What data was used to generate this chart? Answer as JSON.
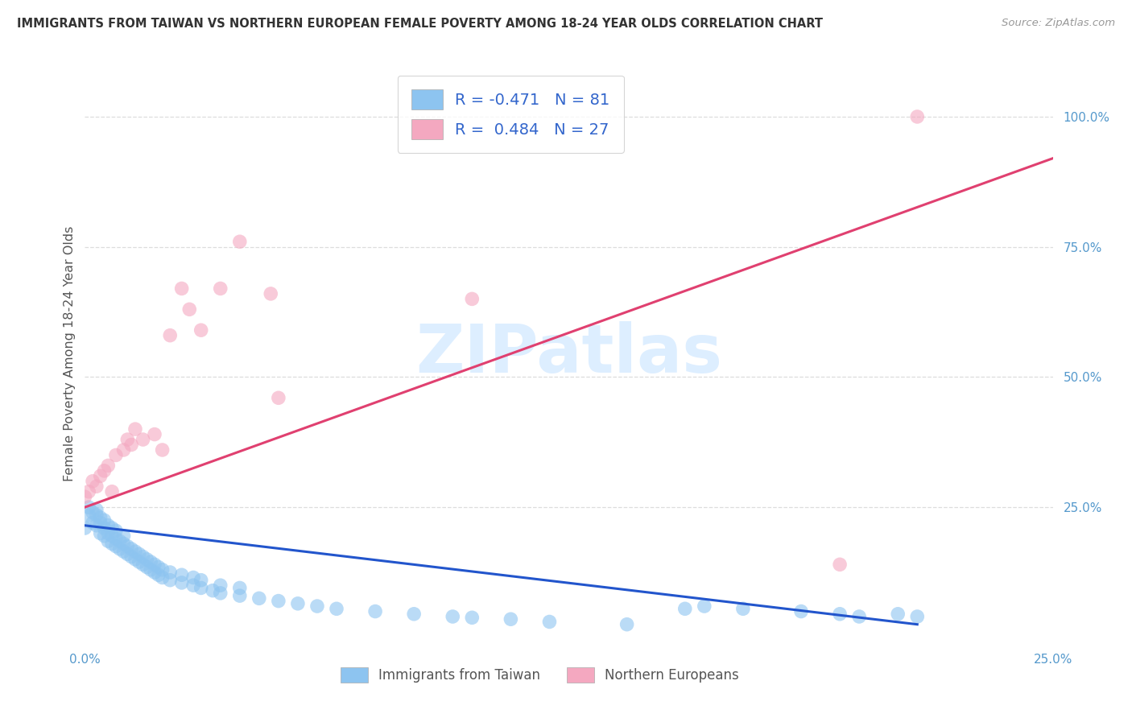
{
  "title": "IMMIGRANTS FROM TAIWAN VS NORTHERN EUROPEAN FEMALE POVERTY AMONG 18-24 YEAR OLDS CORRELATION CHART",
  "source": "Source: ZipAtlas.com",
  "ylabel": "Female Poverty Among 18-24 Year Olds",
  "xlim": [
    0.0,
    0.25
  ],
  "ylim": [
    -0.01,
    1.1
  ],
  "xtick_positions": [
    0.0,
    0.05,
    0.1,
    0.15,
    0.2,
    0.25
  ],
  "xtick_labels": [
    "0.0%",
    "",
    "",
    "",
    "",
    "25.0%"
  ],
  "ytick_right_positions": [
    0.25,
    0.5,
    0.75,
    1.0
  ],
  "ytick_right_labels": [
    "25.0%",
    "50.0%",
    "75.0%",
    "100.0%"
  ],
  "blue_color": "#8DC4F0",
  "pink_color": "#F4A8C0",
  "line_blue_color": "#2255CC",
  "line_pink_color": "#E04070",
  "tick_label_color": "#5599CC",
  "title_color": "#333333",
  "source_color": "#999999",
  "grid_color": "#DDDDDD",
  "watermark_color": "#DDEEFF",
  "ylabel_color": "#555555",
  "legend_text_color": "#3366CC",
  "legend_label_color": "#555555",
  "legend_r1": "R = -0.471",
  "legend_n1": "N = 81",
  "legend_r2": "R =  0.484",
  "legend_n2": "N = 27",
  "legend_label1": "Immigrants from Taiwan",
  "legend_label2": "Northern Europeans",
  "blue_trend_x0": 0.0,
  "blue_trend_y0": 0.215,
  "blue_trend_x1": 0.215,
  "blue_trend_y1": 0.025,
  "pink_trend_x0": 0.0,
  "pink_trend_y0": 0.25,
  "pink_trend_x1": 0.25,
  "pink_trend_y1": 0.92,
  "tw_x": [
    0.0,
    0.001,
    0.001,
    0.002,
    0.002,
    0.003,
    0.003,
    0.003,
    0.004,
    0.004,
    0.004,
    0.005,
    0.005,
    0.005,
    0.006,
    0.006,
    0.006,
    0.007,
    0.007,
    0.007,
    0.008,
    0.008,
    0.008,
    0.009,
    0.009,
    0.01,
    0.01,
    0.01,
    0.011,
    0.011,
    0.012,
    0.012,
    0.013,
    0.013,
    0.014,
    0.014,
    0.015,
    0.015,
    0.016,
    0.016,
    0.017,
    0.017,
    0.018,
    0.018,
    0.019,
    0.019,
    0.02,
    0.02,
    0.022,
    0.022,
    0.025,
    0.025,
    0.028,
    0.028,
    0.03,
    0.03,
    0.033,
    0.035,
    0.035,
    0.04,
    0.04,
    0.045,
    0.05,
    0.055,
    0.06,
    0.065,
    0.075,
    0.085,
    0.095,
    0.1,
    0.11,
    0.12,
    0.14,
    0.155,
    0.16,
    0.17,
    0.185,
    0.195,
    0.2,
    0.21,
    0.215
  ],
  "tw_y": [
    0.21,
    0.235,
    0.25,
    0.22,
    0.24,
    0.215,
    0.235,
    0.245,
    0.2,
    0.22,
    0.23,
    0.195,
    0.21,
    0.225,
    0.185,
    0.2,
    0.215,
    0.18,
    0.195,
    0.21,
    0.175,
    0.19,
    0.205,
    0.17,
    0.185,
    0.165,
    0.18,
    0.195,
    0.16,
    0.175,
    0.155,
    0.17,
    0.15,
    0.165,
    0.145,
    0.16,
    0.14,
    0.155,
    0.135,
    0.15,
    0.13,
    0.145,
    0.125,
    0.14,
    0.12,
    0.135,
    0.115,
    0.13,
    0.11,
    0.125,
    0.105,
    0.12,
    0.1,
    0.115,
    0.095,
    0.11,
    0.09,
    0.085,
    0.1,
    0.08,
    0.095,
    0.075,
    0.07,
    0.065,
    0.06,
    0.055,
    0.05,
    0.045,
    0.04,
    0.038,
    0.035,
    0.03,
    0.025,
    0.055,
    0.06,
    0.055,
    0.05,
    0.045,
    0.04,
    0.045,
    0.04
  ],
  "ne_x": [
    0.0,
    0.001,
    0.002,
    0.003,
    0.004,
    0.005,
    0.006,
    0.007,
    0.008,
    0.01,
    0.011,
    0.012,
    0.013,
    0.015,
    0.018,
    0.02,
    0.022,
    0.025,
    0.027,
    0.03,
    0.035,
    0.04,
    0.048,
    0.05,
    0.1,
    0.195,
    0.215
  ],
  "ne_y": [
    0.27,
    0.28,
    0.3,
    0.29,
    0.31,
    0.32,
    0.33,
    0.28,
    0.35,
    0.36,
    0.38,
    0.37,
    0.4,
    0.38,
    0.39,
    0.36,
    0.58,
    0.67,
    0.63,
    0.59,
    0.67,
    0.76,
    0.66,
    0.46,
    0.65,
    0.14,
    1.0
  ]
}
